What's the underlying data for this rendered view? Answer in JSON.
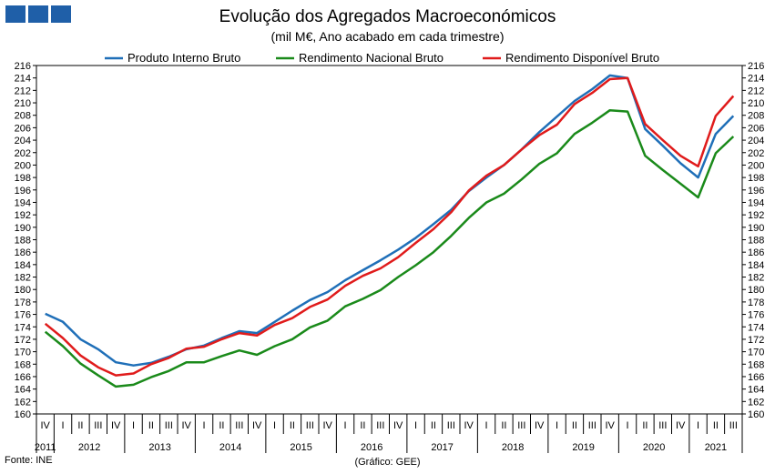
{
  "header": {
    "title": "Evolução dos Agregados Macroeconómicos",
    "subtitle": "(mil M€, Ano acabado em cada trimestre)"
  },
  "footer": {
    "source": "Fonte: INE",
    "credit": "(Gráfico: GEE)"
  },
  "colors": {
    "pib": "#1f6fb8",
    "rnb": "#1a8a1a",
    "rdb": "#e01b1b",
    "logo": "#1f5fa8"
  },
  "chart_data": {
    "type": "line",
    "title": "Evolução dos Agregados Macroeconómicos",
    "subtitle": "(mil M€, Ano acabado em cada trimestre)",
    "legend_position": "top",
    "ylim": [
      160,
      216
    ],
    "ytick_step": 2,
    "y_axes": "left-and-right",
    "x": [
      "IV",
      "I",
      "II",
      "III",
      "IV",
      "I",
      "II",
      "III",
      "IV",
      "I",
      "II",
      "III",
      "IV",
      "I",
      "II",
      "III",
      "IV",
      "I",
      "II",
      "III",
      "IV",
      "I",
      "II",
      "III",
      "IV",
      "I",
      "II",
      "III",
      "IV",
      "I",
      "II",
      "III",
      "IV",
      "I",
      "II",
      "III",
      "IV",
      "I",
      "II",
      "III"
    ],
    "year_labels": [
      "2011",
      "2012",
      "2013",
      "2014",
      "2015",
      "2016",
      "2017",
      "2018",
      "2019",
      "2020",
      "2021"
    ],
    "series": [
      {
        "name": "Produto Interno Bruto",
        "color": "#1f6fb8",
        "values": [
          176.1,
          174.8,
          172.0,
          170.4,
          168.3,
          167.8,
          168.2,
          169.2,
          170.4,
          171.0,
          172.2,
          173.3,
          173.0,
          174.8,
          176.6,
          178.3,
          179.6,
          181.5,
          183.1,
          184.7,
          186.4,
          188.3,
          190.5,
          192.8,
          195.8,
          198.0,
          200.0,
          202.5,
          205.3,
          207.8,
          210.3,
          212.2,
          214.4,
          214.0,
          205.8,
          203.1,
          200.3,
          198.0,
          205.0,
          207.9
        ]
      },
      {
        "name": "Rendimento Nacional Bruto",
        "color": "#1a8a1a",
        "values": [
          173.2,
          170.9,
          168.1,
          166.2,
          164.4,
          164.7,
          165.9,
          166.9,
          168.3,
          168.3,
          169.3,
          170.2,
          169.5,
          170.9,
          172.0,
          173.9,
          175.0,
          177.3,
          178.5,
          179.9,
          182.0,
          183.9,
          186.0,
          188.6,
          191.5,
          194.0,
          195.4,
          197.7,
          200.2,
          201.9,
          205.0,
          206.8,
          208.8,
          208.6,
          201.5,
          199.2,
          197.0,
          194.8,
          201.9,
          204.6
        ]
      },
      {
        "name": "Rendimento Disponível Bruto",
        "color": "#e01b1b",
        "values": [
          174.5,
          172.2,
          169.4,
          167.5,
          166.2,
          166.5,
          168.0,
          169.0,
          170.5,
          170.8,
          172.0,
          173.0,
          172.6,
          174.3,
          175.4,
          177.2,
          178.4,
          180.6,
          182.2,
          183.4,
          185.2,
          187.5,
          189.7,
          192.4,
          195.9,
          198.3,
          200.0,
          202.5,
          204.8,
          206.5,
          209.8,
          211.6,
          213.8,
          214.0,
          206.6,
          204.0,
          201.5,
          199.8,
          207.9,
          211.1
        ]
      }
    ]
  }
}
